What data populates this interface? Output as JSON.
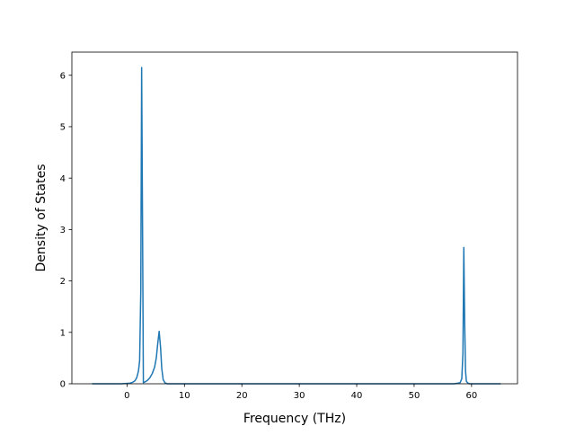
{
  "chart_data": {
    "type": "line",
    "title": "",
    "xlabel": "Frequency (THz)",
    "ylabel": "Density of States",
    "xlim": [
      -9.6,
      68.0
    ],
    "ylim": [
      0,
      6.45
    ],
    "xticks": [
      0,
      10,
      20,
      30,
      40,
      50,
      60
    ],
    "yticks": [
      0,
      1,
      2,
      3,
      4,
      5,
      6
    ],
    "grid": false,
    "legend": "none",
    "series": [
      {
        "color": "#1f77b4",
        "x": [
          -6.0,
          -1.0,
          0.5,
          1.0,
          1.4,
          1.7,
          2.0,
          2.2,
          2.4,
          2.55,
          2.7,
          2.85,
          3.0,
          3.2,
          3.6,
          4.0,
          4.4,
          4.8,
          5.1,
          5.35,
          5.6,
          5.85,
          6.05,
          6.3,
          6.6,
          7.0,
          8.0,
          20.0,
          40.0,
          57.0,
          58.0,
          58.3,
          58.5,
          58.65,
          58.8,
          58.95,
          59.1,
          59.3,
          59.6,
          60.0,
          65.0
        ],
        "y": [
          0,
          0,
          0.01,
          0.03,
          0.06,
          0.12,
          0.25,
          0.45,
          1.8,
          6.15,
          3.2,
          0.02,
          0.03,
          0.04,
          0.07,
          0.12,
          0.2,
          0.32,
          0.5,
          0.78,
          1.02,
          0.7,
          0.3,
          0.08,
          0.02,
          0,
          0,
          0,
          0,
          0,
          0.02,
          0.1,
          0.6,
          2.65,
          1.2,
          0.25,
          0.05,
          0.02,
          0,
          0,
          0
        ]
      }
    ]
  }
}
